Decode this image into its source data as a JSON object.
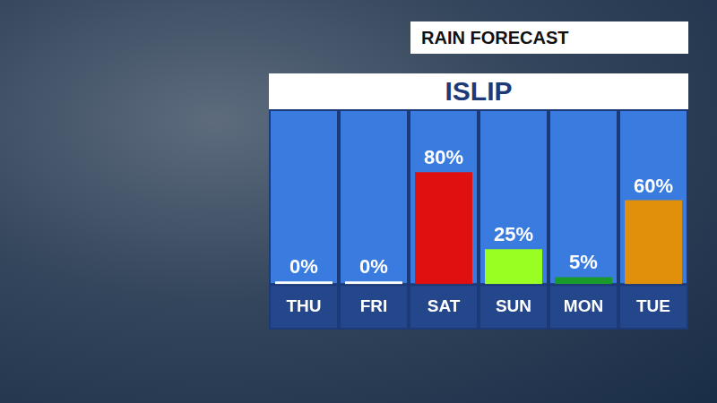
{
  "chart_data": {
    "type": "bar",
    "title": "ISLIP",
    "subtitle": "RAIN FORECAST",
    "categories": [
      "THU",
      "FRI",
      "SAT",
      "SUN",
      "MON",
      "TUE"
    ],
    "values": [
      0,
      0,
      80,
      25,
      5,
      60
    ],
    "value_labels": [
      "0%",
      "0%",
      "80%",
      "25%",
      "5%",
      "60%"
    ],
    "colors": [
      "#ffffff",
      "#ffffff",
      "#e01010",
      "#99ff22",
      "#1a9a2a",
      "#e0900a"
    ],
    "ylim": [
      0,
      125
    ],
    "grid": false,
    "data_labels": true,
    "tick_labels": "x"
  }
}
